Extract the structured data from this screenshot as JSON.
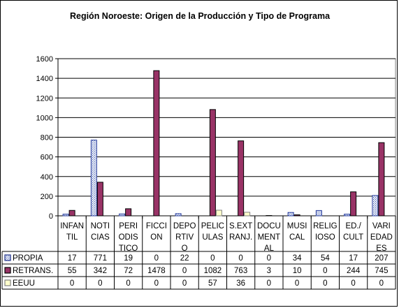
{
  "chart_data": {
    "type": "bar",
    "title": "Región Noroeste: Origen de la Producción y Tipo de Programa",
    "xlabel": "",
    "ylabel": "",
    "ylim": [
      0,
      1600
    ],
    "y_ticks": [
      "0",
      "200",
      "400",
      "600",
      "800",
      "1000",
      "1200",
      "1400",
      "1600"
    ],
    "grid": true,
    "legend": "table-bottom",
    "categories": [
      [
        "INFAN",
        "TIL"
      ],
      [
        "NOTI",
        "CIAS"
      ],
      [
        "PERI",
        "ODIS",
        "TICO"
      ],
      [
        "FICCI",
        "ON"
      ],
      [
        "DEPO",
        "RTIV",
        "O"
      ],
      [
        "PELIC",
        "ULAS"
      ],
      [
        "S.EXT",
        "RANJ."
      ],
      [
        "DOCU",
        "MENT",
        "AL"
      ],
      [
        "MUSI",
        "CAL"
      ],
      [
        "RELIG",
        "IOSO"
      ],
      [
        "ED./",
        "CULT"
      ],
      [
        "VARI",
        "EDAD",
        "ES"
      ]
    ],
    "series": [
      {
        "name": "PROPIA",
        "color": "#d6e1f5",
        "values": [
          17,
          771,
          19,
          0,
          22,
          0,
          0,
          0,
          34,
          54,
          17,
          207
        ],
        "labels": [
          "17",
          "771",
          "19",
          "0",
          "22",
          "0",
          "0",
          "0",
          "34",
          "54",
          "17",
          "207"
        ]
      },
      {
        "name": "RETRANS.",
        "color": "#993366",
        "values": [
          55,
          342,
          72,
          1478,
          0,
          1082,
          763,
          3,
          10,
          0,
          244,
          745
        ],
        "labels": [
          "55",
          "342",
          "72",
          "1478",
          "0",
          "1082",
          "763",
          "3",
          "10",
          "0",
          "244",
          "745"
        ]
      },
      {
        "name": "EEUU",
        "color": "#ffffcc",
        "values": [
          0,
          0,
          0,
          0,
          0,
          57,
          36,
          0,
          0,
          0,
          0,
          0
        ],
        "labels": [
          "0",
          "0",
          "0",
          "0",
          "0",
          "57",
          "36",
          "0",
          "0",
          "0",
          "0",
          "0"
        ]
      }
    ]
  }
}
